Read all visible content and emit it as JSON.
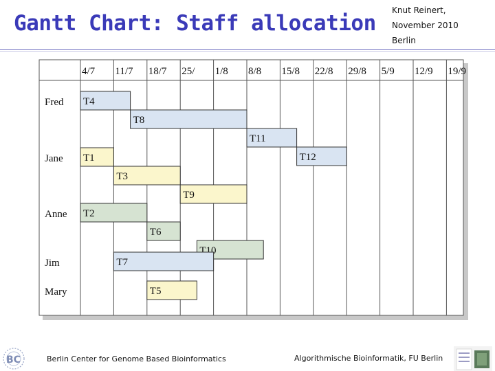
{
  "slide": {
    "title": "Gantt Chart: Staff allocation",
    "author": "Knut Reinert,",
    "date": "November 2010",
    "place": "Berlin",
    "footer_left": "Berlin Center for Genome Based Bioinformatics",
    "footer_right": "Algorithmische Bioinformatik, FU Berlin",
    "colors": {
      "title": "#3a3ab8",
      "rule": "#6d6dc0"
    }
  },
  "chart_data": {
    "type": "gantt",
    "x_ticks": [
      "4/7",
      "11/7",
      "18/7",
      "25/",
      "1/8",
      "8/8",
      "15/8",
      "22/8",
      "29/8",
      "5/9",
      "12/9",
      "19/9"
    ],
    "rows": [
      "Fred",
      "Jane",
      "Anne",
      "Jim",
      "Mary"
    ],
    "tasks": [
      {
        "name": "T4",
        "person": "Fred",
        "start": 0,
        "end": 1.5,
        "color": "#d9e4f2"
      },
      {
        "name": "T8",
        "person": "Fred",
        "start": 1.5,
        "end": 5,
        "color": "#d9e4f2"
      },
      {
        "name": "T11",
        "person": "Fred",
        "start": 5,
        "end": 6.5,
        "color": "#d9e4f2"
      },
      {
        "name": "T12",
        "person": "Fred",
        "start": 6.5,
        "end": 8,
        "color": "#d9e4f2"
      },
      {
        "name": "T1",
        "person": "Jane",
        "start": 0,
        "end": 1,
        "color": "#fbf6cc"
      },
      {
        "name": "T3",
        "person": "Jane",
        "start": 1,
        "end": 3,
        "color": "#fbf6cc"
      },
      {
        "name": "T9",
        "person": "Jane",
        "start": 3,
        "end": 5,
        "color": "#fbf6cc"
      },
      {
        "name": "T2",
        "person": "Anne",
        "start": 0,
        "end": 2,
        "color": "#d6e3d2"
      },
      {
        "name": "T6",
        "person": "Anne",
        "start": 2,
        "end": 3,
        "color": "#d6e3d2"
      },
      {
        "name": "T10",
        "person": "Anne",
        "start": 3.5,
        "end": 5.5,
        "color": "#d6e3d2"
      },
      {
        "name": "T7",
        "person": "Jim",
        "start": 1,
        "end": 4,
        "color": "#d9e4f2"
      },
      {
        "name": "T5",
        "person": "Mary",
        "start": 2,
        "end": 3.5,
        "color": "#fbf6cc"
      }
    ],
    "x_unit": "weeks from 4/7"
  }
}
